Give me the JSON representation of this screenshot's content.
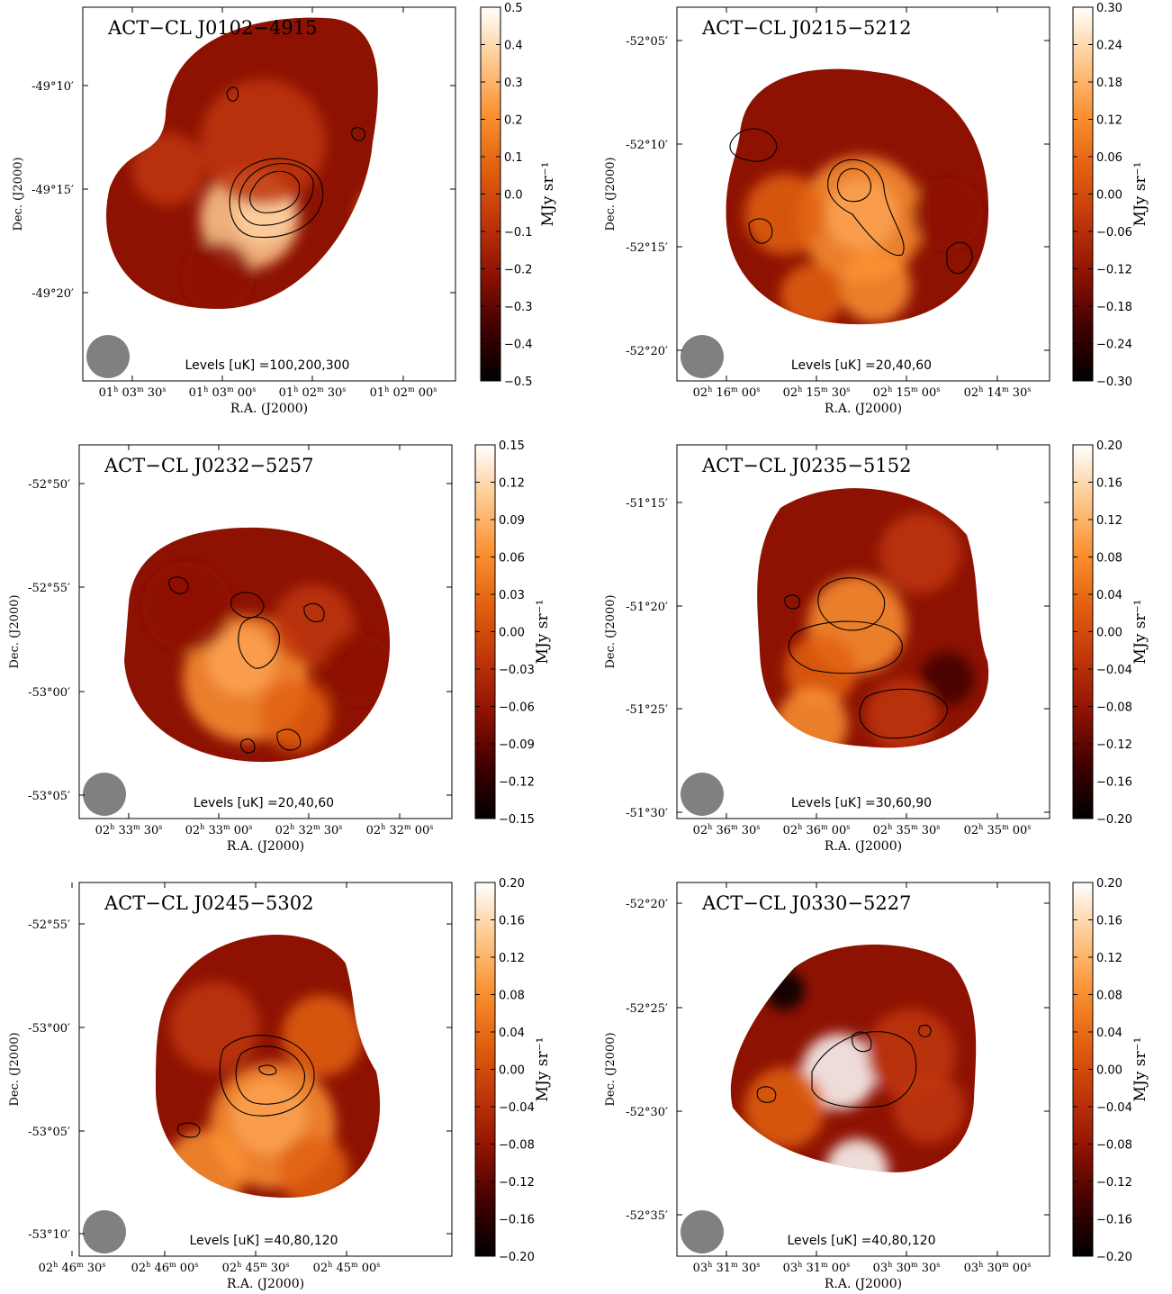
{
  "figure": {
    "colormap": [
      "#000000",
      "#400000",
      "#8e1202",
      "#c0360a",
      "#e2610f",
      "#fa9233",
      "#fec98f",
      "#ffffff"
    ],
    "axis_labels": {
      "ra": "R.A. (J2000)",
      "dec": "Dec. (J2000)",
      "colorbar": "MJy sr⁻¹"
    }
  },
  "panels": [
    {
      "title": "ACT−CL J0102−4915",
      "levels": "Levels [uK] =100,200,300",
      "ra_ticks": [
        {
          "h": "01",
          "m": "03",
          "s": "30"
        },
        {
          "h": "01",
          "m": "03",
          "s": "00"
        },
        {
          "h": "01",
          "m": "02",
          "s": "30"
        },
        {
          "h": "01",
          "m": "02",
          "s": "00"
        }
      ],
      "dec_ticks": [
        "-49°10′",
        "-49°15′",
        "-49°20′"
      ],
      "colorbar": {
        "ticks": [
          "0.5",
          "0.4",
          "0.3",
          "0.2",
          "0.1",
          "0.0",
          "−0.1",
          "−0.2",
          "−0.3",
          "−0.4",
          "−0.5"
        ],
        "min": -0.5,
        "max": 0.5
      },
      "peak": "bright compact peak near centre"
    },
    {
      "title": "ACT−CL J0215−5212",
      "levels": "Levels [uK] =20,40,60",
      "ra_ticks": [
        {
          "h": "02",
          "m": "16",
          "s": "00"
        },
        {
          "h": "02",
          "m": "15",
          "s": "30"
        },
        {
          "h": "02",
          "m": "15",
          "s": "00"
        },
        {
          "h": "02",
          "m": "14",
          "s": "30"
        }
      ],
      "dec_ticks": [
        "-52°05′",
        "-52°10′",
        "-52°15′",
        "-52°20′"
      ],
      "colorbar": {
        "ticks": [
          "0.30",
          "0.24",
          "0.18",
          "0.12",
          "0.06",
          "0.00",
          "−0.06",
          "−0.12",
          "−0.18",
          "−0.24",
          "−0.30"
        ],
        "min": -0.3,
        "max": 0.3
      },
      "peak": "bright peak near centre"
    },
    {
      "title": "ACT−CL J0232−5257",
      "levels": "Levels [uK] =20,40,60",
      "ra_ticks": [
        {
          "h": "02",
          "m": "33",
          "s": "30"
        },
        {
          "h": "02",
          "m": "33",
          "s": "00"
        },
        {
          "h": "02",
          "m": "32",
          "s": "30"
        },
        {
          "h": "02",
          "m": "32",
          "s": "00"
        }
      ],
      "dec_ticks": [
        "-52°50′",
        "-52°55′",
        "-53°00′",
        "-53°05′"
      ],
      "colorbar": {
        "ticks": [
          "0.15",
          "0.12",
          "0.09",
          "0.06",
          "0.03",
          "0.00",
          "−0.03",
          "−0.06",
          "−0.09",
          "−0.12",
          "−0.15"
        ],
        "min": -0.15,
        "max": 0.15
      },
      "peak": "diffuse peak left of centre"
    },
    {
      "title": "ACT−CL J0235−5152",
      "levels": "Levels [uK] =30,60,90",
      "ra_ticks": [
        {
          "h": "02",
          "m": "36",
          "s": "30"
        },
        {
          "h": "02",
          "m": "36",
          "s": "00"
        },
        {
          "h": "02",
          "m": "35",
          "s": "30"
        },
        {
          "h": "02",
          "m": "35",
          "s": "00"
        }
      ],
      "dec_ticks": [
        "-51°15′",
        "-51°20′",
        "-51°25′",
        "-51°30′"
      ],
      "colorbar": {
        "ticks": [
          "0.20",
          "0.16",
          "0.12",
          "0.08",
          "0.04",
          "0.00",
          "−0.04",
          "−0.08",
          "−0.12",
          "−0.16",
          "−0.20"
        ],
        "min": -0.2,
        "max": 0.2
      },
      "peak": "extended mottled emission"
    },
    {
      "title": "ACT−CL J0245−5302",
      "levels": "Levels [uK] =40,80,120",
      "ra_ticks": [
        {
          "h": "02",
          "m": "46",
          "s": "30"
        },
        {
          "h": "02",
          "m": "46",
          "s": "00"
        },
        {
          "h": "02",
          "m": "45",
          "s": "30"
        },
        {
          "h": "02",
          "m": "45",
          "s": "00"
        }
      ],
      "dec_ticks": [
        "-52°55′",
        "-53°00′",
        "-53°05′",
        "-53°10′"
      ],
      "colorbar": {
        "ticks": [
          "0.20",
          "0.16",
          "0.12",
          "0.08",
          "0.04",
          "0.00",
          "−0.04",
          "−0.08",
          "−0.12",
          "−0.16",
          "−0.20"
        ],
        "min": -0.2,
        "max": 0.2
      },
      "peak": "peak below centre"
    },
    {
      "title": "ACT−CL J0330−5227",
      "levels": "Levels [uK] =40,80,120",
      "ra_ticks": [
        {
          "h": "03",
          "m": "31",
          "s": "30"
        },
        {
          "h": "03",
          "m": "31",
          "s": "00"
        },
        {
          "h": "03",
          "m": "30",
          "s": "30"
        },
        {
          "h": "03",
          "m": "30",
          "s": "00"
        }
      ],
      "dec_ticks": [
        "-52°20′",
        "-52°25′",
        "-52°30′",
        "-52°35′"
      ],
      "colorbar": {
        "ticks": [
          "0.20",
          "0.16",
          "0.12",
          "0.08",
          "0.04",
          "0.00",
          "−0.04",
          "−0.08",
          "−0.12",
          "−0.16",
          "−0.20"
        ],
        "min": -0.2,
        "max": 0.2
      },
      "peak": "two bright peaks, centre and bottom"
    }
  ]
}
